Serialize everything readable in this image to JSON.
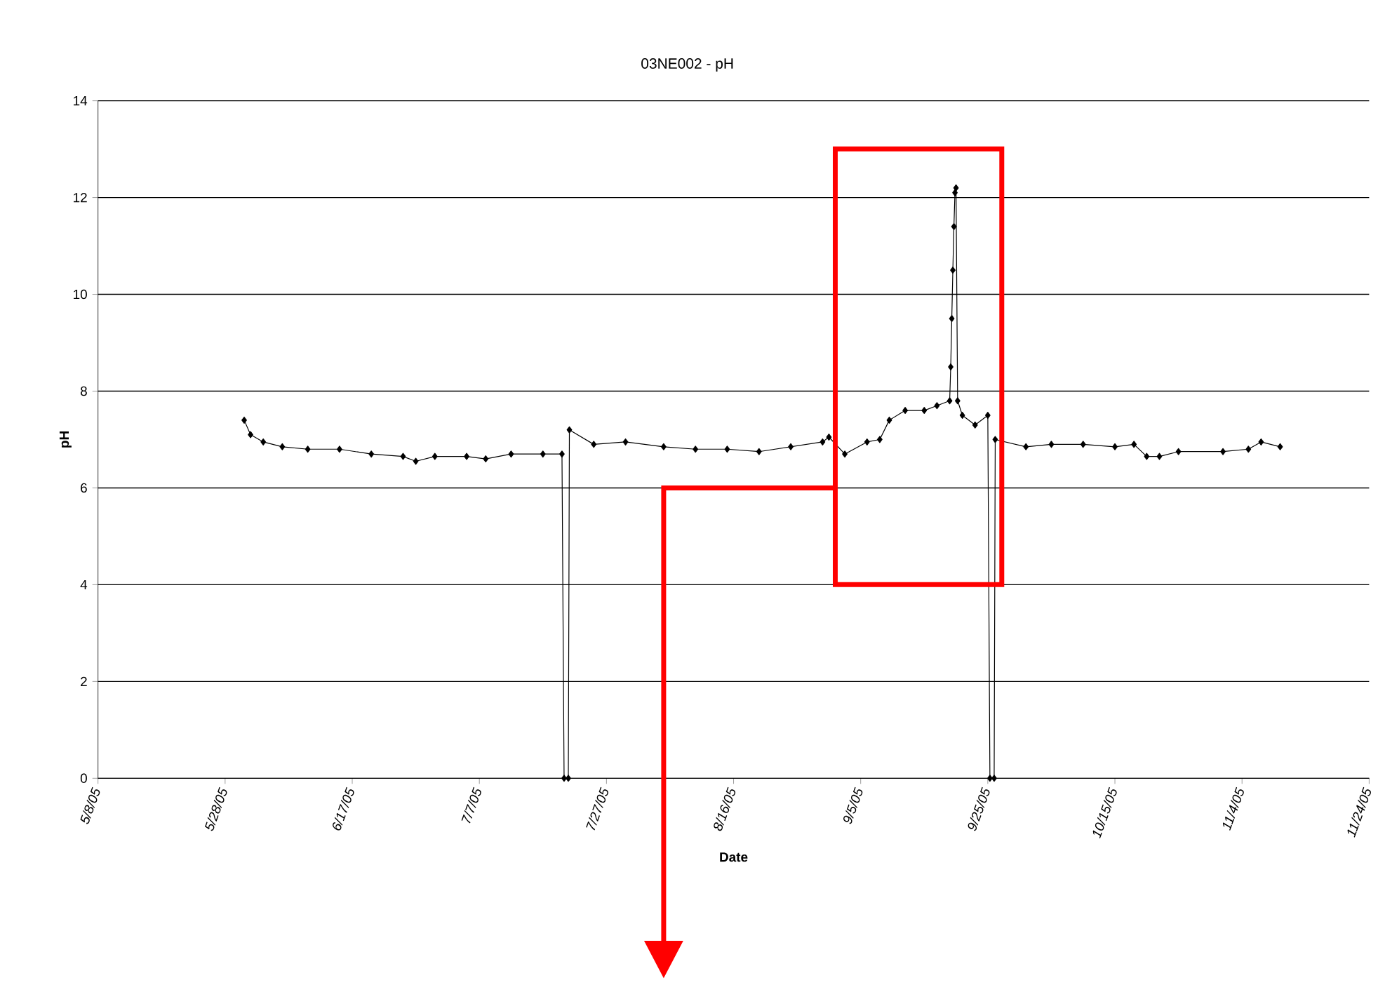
{
  "chart_data": {
    "type": "line",
    "title": "03NE002 - pH",
    "xlabel": "Date",
    "ylabel": "pH",
    "xlim": [
      "2005-05-08",
      "2005-11-24"
    ],
    "xticks": [
      {
        "value": "2005-05-08",
        "label": "5/8/05"
      },
      {
        "value": "2005-05-28",
        "label": "5/28/05"
      },
      {
        "value": "2005-06-17",
        "label": "6/17/05"
      },
      {
        "value": "2005-07-07",
        "label": "7/7/05"
      },
      {
        "value": "2005-07-27",
        "label": "7/27/05"
      },
      {
        "value": "2005-08-16",
        "label": "8/16/05"
      },
      {
        "value": "2005-09-05",
        "label": "9/5/05"
      },
      {
        "value": "2005-09-25",
        "label": "9/25/05"
      },
      {
        "value": "2005-10-15",
        "label": "10/15/05"
      },
      {
        "value": "2005-11-04",
        "label": "11/4/05"
      },
      {
        "value": "2005-11-24",
        "label": "11/24/05"
      }
    ],
    "ylim": [
      0,
      14
    ],
    "yticks": [
      0,
      2,
      4,
      6,
      8,
      10,
      12,
      14
    ],
    "grid": "y",
    "marker": "diamond",
    "line_style": "solid",
    "series": [
      {
        "color": "#000000",
        "x": [
          "2005-05-31",
          "2005-06-01",
          "2005-06-03",
          "2005-06-06",
          "2005-06-10",
          "2005-06-15",
          "2005-06-20",
          "2005-06-25",
          "2005-06-27",
          "2005-06-30",
          "2005-07-05",
          "2005-07-08",
          "2005-07-12",
          "2005-07-17",
          "2005-07-20",
          "2005-07-20T08:00",
          "2005-07-21",
          "2005-07-21T04:00",
          "2005-07-25",
          "2005-07-30",
          "2005-08-05",
          "2005-08-10",
          "2005-08-15",
          "2005-08-20",
          "2005-08-25",
          "2005-08-30",
          "2005-08-31",
          "2005-09-02T12:00",
          "2005-09-06",
          "2005-09-08",
          "2005-09-09T12:00",
          "2005-09-12",
          "2005-09-15",
          "2005-09-17",
          "2005-09-19",
          "2005-09-19T04:00",
          "2005-09-19T08:00",
          "2005-09-19T12:00",
          "2005-09-19T16:00",
          "2005-09-19T20:00",
          "2005-09-20",
          "2005-09-20T06:00",
          "2005-09-21",
          "2005-09-23",
          "2005-09-25",
          "2005-09-25T08:00",
          "2005-09-26",
          "2005-09-26T04:00",
          "2005-10-01",
          "2005-10-05",
          "2005-10-10",
          "2005-10-15",
          "2005-10-18",
          "2005-10-20",
          "2005-10-22",
          "2005-10-25",
          "2005-11-01",
          "2005-11-05",
          "2005-11-07",
          "2005-11-10"
        ],
        "values": [
          7.4,
          7.1,
          6.95,
          6.85,
          6.8,
          6.8,
          6.7,
          6.65,
          6.55,
          6.65,
          6.65,
          6.6,
          6.7,
          6.7,
          6.7,
          0,
          0,
          7.2,
          6.9,
          6.95,
          6.85,
          6.8,
          6.8,
          6.75,
          6.85,
          6.95,
          7.05,
          6.7,
          6.95,
          7.0,
          7.4,
          7.6,
          7.6,
          7.7,
          7.8,
          8.5,
          9.5,
          10.5,
          11.4,
          12.1,
          12.2,
          7.8,
          7.5,
          7.3,
          7.5,
          0,
          0,
          7.0,
          6.85,
          6.9,
          6.9,
          6.85,
          6.9,
          6.65,
          6.65,
          6.75,
          6.75,
          6.8,
          6.95,
          6.85
        ]
      }
    ]
  }
}
